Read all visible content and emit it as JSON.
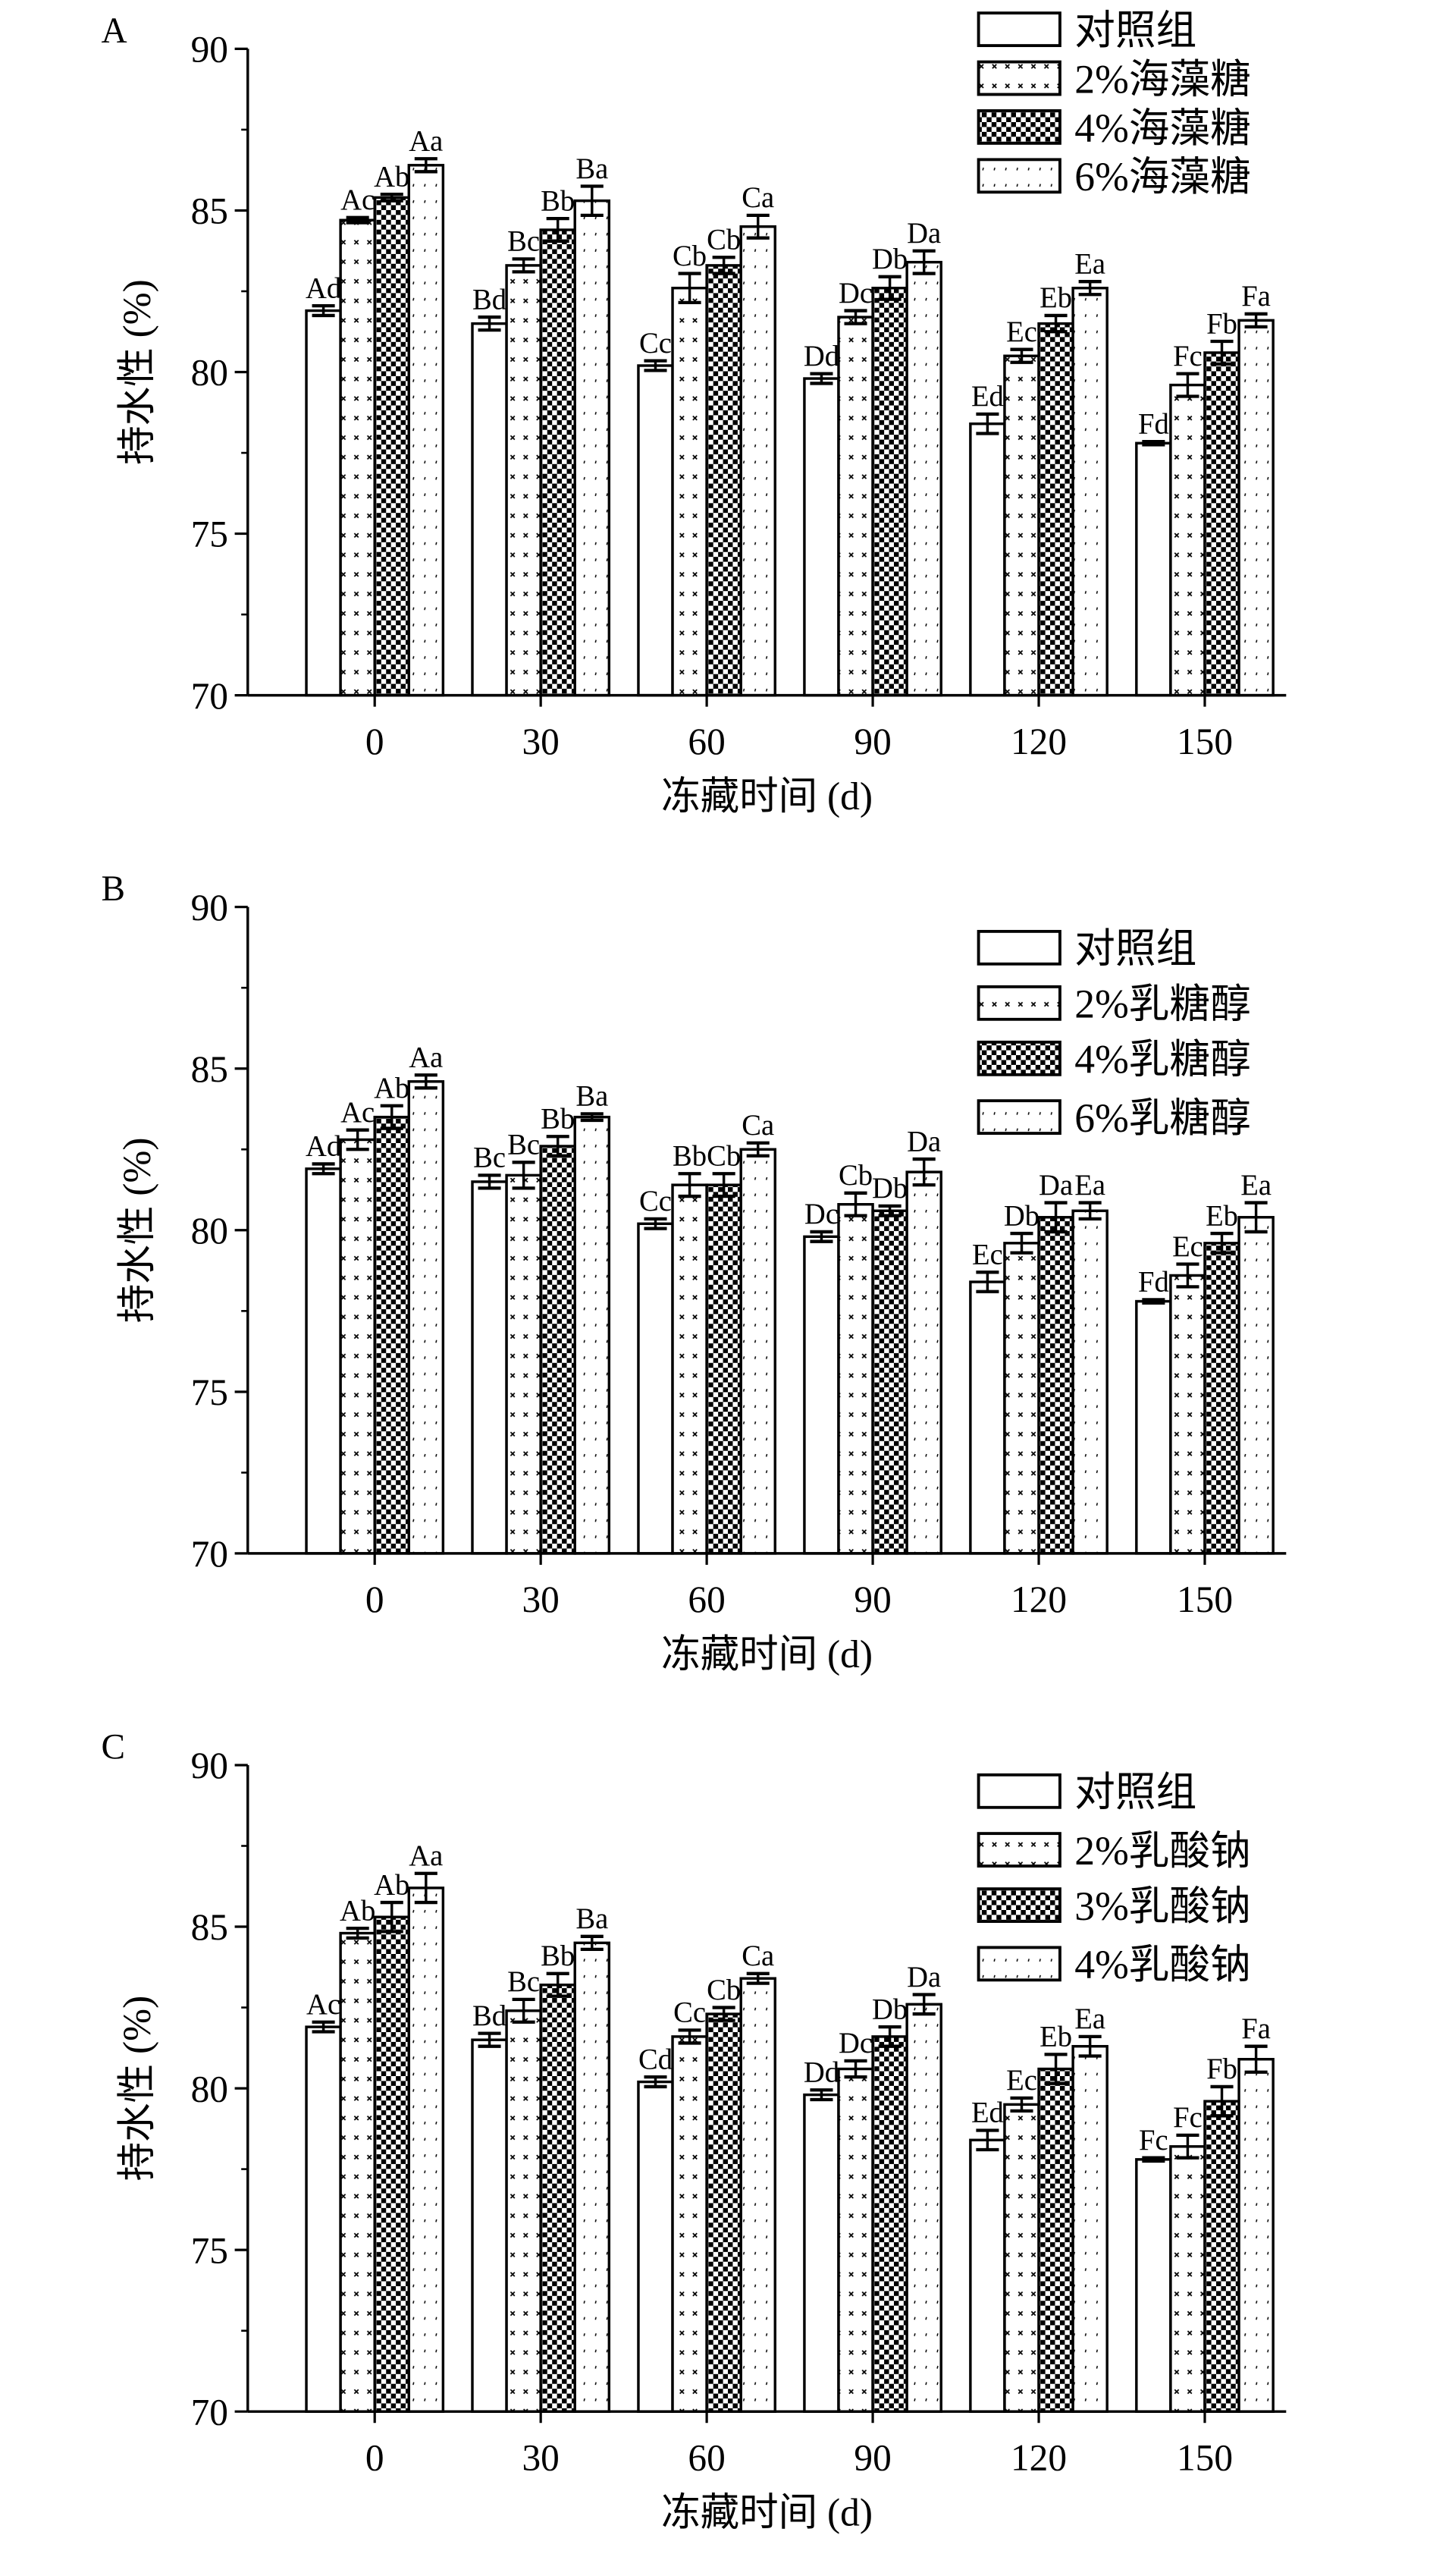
{
  "chart_data": [
    {
      "type": "bar",
      "panel": "A",
      "xlabel": "冻藏时间 (d)",
      "ylabel": "持水性 (%)",
      "ylim": [
        70,
        90
      ],
      "yticks": [
        "70",
        "75",
        "80",
        "85",
        "90"
      ],
      "categories": [
        "0",
        "30",
        "60",
        "90",
        "120",
        "150"
      ],
      "legend_position": "top-right",
      "series": [
        {
          "name": "对照组",
          "pattern": "blank",
          "values": [
            81.9,
            81.5,
            80.2,
            79.8,
            78.4,
            77.8
          ],
          "errors": [
            0.15,
            0.2,
            0.15,
            0.15,
            0.3,
            0.05
          ],
          "labels": [
            "Ad",
            "Bd",
            "Cc",
            "Dd",
            "Ed",
            "Fd"
          ]
        },
        {
          "name": "2%海藻糖",
          "pattern": "cross",
          "values": [
            84.7,
            83.3,
            82.6,
            81.7,
            80.5,
            79.6
          ],
          "errors": [
            0.08,
            0.2,
            0.45,
            0.2,
            0.2,
            0.35
          ],
          "labels": [
            "Ac",
            "Bc",
            "Cb",
            "Dc",
            "Ec",
            "Fc"
          ]
        },
        {
          "name": "4%海藻糖",
          "pattern": "checker",
          "values": [
            85.4,
            84.4,
            83.3,
            82.6,
            81.5,
            80.6
          ],
          "errors": [
            0.1,
            0.35,
            0.25,
            0.35,
            0.25,
            0.35
          ],
          "labels": [
            "Ab",
            "Bb",
            "Cb",
            "Db",
            "Eb",
            "Fb"
          ]
        },
        {
          "name": "6%海藻糖",
          "pattern": "dots",
          "values": [
            86.4,
            85.3,
            84.5,
            83.4,
            82.6,
            81.6
          ],
          "errors": [
            0.2,
            0.45,
            0.35,
            0.35,
            0.2,
            0.2
          ],
          "labels": [
            "Aa",
            "Ba",
            "Ca",
            "Da",
            "Ea",
            "Fa"
          ]
        }
      ]
    },
    {
      "type": "bar",
      "panel": "B",
      "xlabel": "冻藏时间 (d)",
      "ylabel": "持水性 (%)",
      "ylim": [
        70,
        90
      ],
      "yticks": [
        "70",
        "75",
        "80",
        "85",
        "90"
      ],
      "categories": [
        "0",
        "30",
        "60",
        "90",
        "120",
        "150"
      ],
      "legend_position": "top-right",
      "series": [
        {
          "name": "对照组",
          "pattern": "blank",
          "values": [
            81.9,
            81.5,
            80.2,
            79.8,
            78.4,
            77.8
          ],
          "errors": [
            0.15,
            0.2,
            0.15,
            0.15,
            0.3,
            0.05
          ],
          "labels": [
            "Ad",
            "Bc",
            "Cc",
            "Dc",
            "Ec",
            "Fd"
          ]
        },
        {
          "name": "2%乳糖醇",
          "pattern": "cross",
          "values": [
            82.8,
            81.7,
            81.4,
            80.8,
            79.6,
            78.6
          ],
          "errors": [
            0.3,
            0.4,
            0.35,
            0.35,
            0.3,
            0.35
          ],
          "labels": [
            "Ac",
            "Bc",
            "Bb",
            "Cb",
            "Db",
            "Ec"
          ]
        },
        {
          "name": "4%乳糖醇",
          "pattern": "checker",
          "values": [
            83.5,
            82.6,
            81.4,
            80.6,
            80.4,
            79.6
          ],
          "errors": [
            0.35,
            0.3,
            0.35,
            0.15,
            0.45,
            0.3
          ],
          "labels": [
            "Ab",
            "Bb",
            "Cb",
            "Db",
            "Da",
            "Eb"
          ]
        },
        {
          "name": "6%乳糖醇",
          "pattern": "dots",
          "values": [
            84.6,
            83.5,
            82.5,
            81.8,
            80.6,
            80.4
          ],
          "errors": [
            0.2,
            0.1,
            0.2,
            0.4,
            0.25,
            0.45
          ],
          "labels": [
            "Aa",
            "Ba",
            "Ca",
            "Da",
            "Ea",
            "Ea"
          ]
        }
      ]
    },
    {
      "type": "bar",
      "panel": "C",
      "xlabel": "冻藏时间 (d)",
      "ylabel": "持水性 (%)",
      "ylim": [
        70,
        90
      ],
      "yticks": [
        "70",
        "75",
        "80",
        "85",
        "90"
      ],
      "categories": [
        "0",
        "30",
        "60",
        "90",
        "120",
        "150"
      ],
      "legend_position": "top-right",
      "series": [
        {
          "name": "对照组",
          "pattern": "blank",
          "values": [
            81.9,
            81.5,
            80.2,
            79.8,
            78.4,
            77.8
          ],
          "errors": [
            0.15,
            0.2,
            0.15,
            0.15,
            0.3,
            0.05
          ],
          "labels": [
            "Ac",
            "Bd",
            "Cd",
            "Dd",
            "Ed",
            "Fc"
          ]
        },
        {
          "name": "2%乳酸钠",
          "pattern": "cross",
          "values": [
            84.8,
            82.4,
            81.6,
            80.6,
            79.5,
            78.2
          ],
          "errors": [
            0.15,
            0.35,
            0.2,
            0.25,
            0.2,
            0.35
          ],
          "labels": [
            "Ab",
            "Bc",
            "Cc",
            "Dc",
            "Ec",
            "Fc"
          ]
        },
        {
          "name": "3%乳酸钠",
          "pattern": "checker",
          "values": [
            85.3,
            83.2,
            82.3,
            81.6,
            80.6,
            79.6
          ],
          "errors": [
            0.45,
            0.35,
            0.2,
            0.3,
            0.45,
            0.45
          ],
          "labels": [
            "Ab",
            "Bb",
            "Cb",
            "Db",
            "Eb",
            "Fb"
          ]
        },
        {
          "name": "4%乳酸钠",
          "pattern": "dots",
          "values": [
            86.2,
            84.5,
            83.4,
            82.6,
            81.3,
            80.9
          ],
          "errors": [
            0.45,
            0.2,
            0.15,
            0.3,
            0.3,
            0.4
          ],
          "labels": [
            "Aa",
            "Ba",
            "Ca",
            "Da",
            "Ea",
            "Fa"
          ]
        }
      ]
    }
  ]
}
